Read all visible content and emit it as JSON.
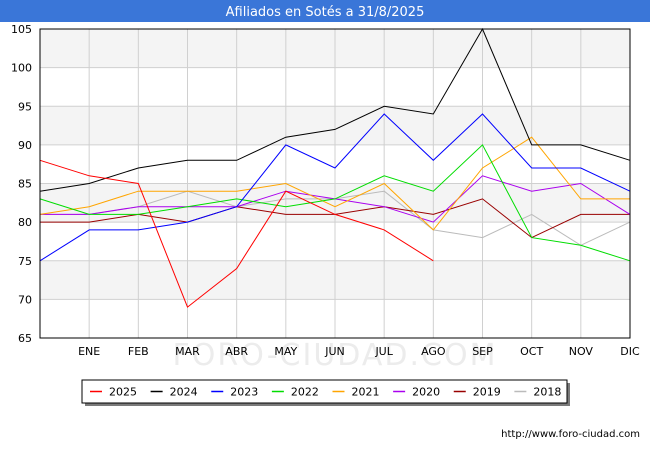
{
  "chart_data": {
    "type": "line",
    "title": "Afiliados en Sotés a 31/8/2025",
    "xlabel": "",
    "ylabel": "",
    "categories": [
      "",
      "ENE",
      "FEB",
      "MAR",
      "ABR",
      "MAY",
      "JUN",
      "JUL",
      "AGO",
      "SEP",
      "OCT",
      "NOV",
      "DIC"
    ],
    "ylim": [
      65,
      105
    ],
    "yticks": [
      65,
      70,
      75,
      80,
      85,
      90,
      95,
      100,
      105
    ],
    "grid": true,
    "legend_position": "bottom",
    "colors": {
      "title_bar": "#3a76d8",
      "band": "#f4f4f4",
      "grid": "#d0d0d0",
      "axis": "#000000"
    },
    "series": [
      {
        "name": "2025",
        "color": "#ff0000",
        "values": [
          88,
          86,
          85,
          69,
          74,
          84,
          81,
          79,
          75,
          null,
          null,
          null,
          null
        ]
      },
      {
        "name": "2024",
        "color": "#000000",
        "values": [
          84,
          85,
          87,
          88,
          88,
          91,
          92,
          95,
          94,
          105,
          90,
          90,
          88
        ]
      },
      {
        "name": "2023",
        "color": "#0000ff",
        "values": [
          75,
          79,
          79,
          80,
          82,
          90,
          87,
          94,
          88,
          94,
          87,
          87,
          84
        ]
      },
      {
        "name": "2022",
        "color": "#00dd00",
        "values": [
          83,
          81,
          81,
          82,
          83,
          82,
          83,
          86,
          84,
          90,
          78,
          77,
          75
        ]
      },
      {
        "name": "2021",
        "color": "#ffa500",
        "values": [
          81,
          82,
          84,
          84,
          84,
          85,
          82,
          85,
          79,
          87,
          91,
          83,
          83
        ]
      },
      {
        "name": "2020",
        "color": "#aa00ee",
        "values": [
          81,
          81,
          82,
          82,
          82,
          84,
          83,
          82,
          80,
          86,
          84,
          85,
          81
        ]
      },
      {
        "name": "2019",
        "color": "#990000",
        "values": [
          80,
          80,
          81,
          80,
          82,
          81,
          81,
          82,
          81,
          83,
          78,
          81,
          81
        ]
      },
      {
        "name": "2018",
        "color": "#bbbbbb",
        "values": [
          81,
          81,
          82,
          84,
          82,
          83,
          83,
          84,
          79,
          78,
          81,
          77,
          80
        ]
      }
    ]
  },
  "footer": {
    "url": "http://www.foro-ciudad.com"
  },
  "watermark": "FORO-CIUDAD.COM"
}
